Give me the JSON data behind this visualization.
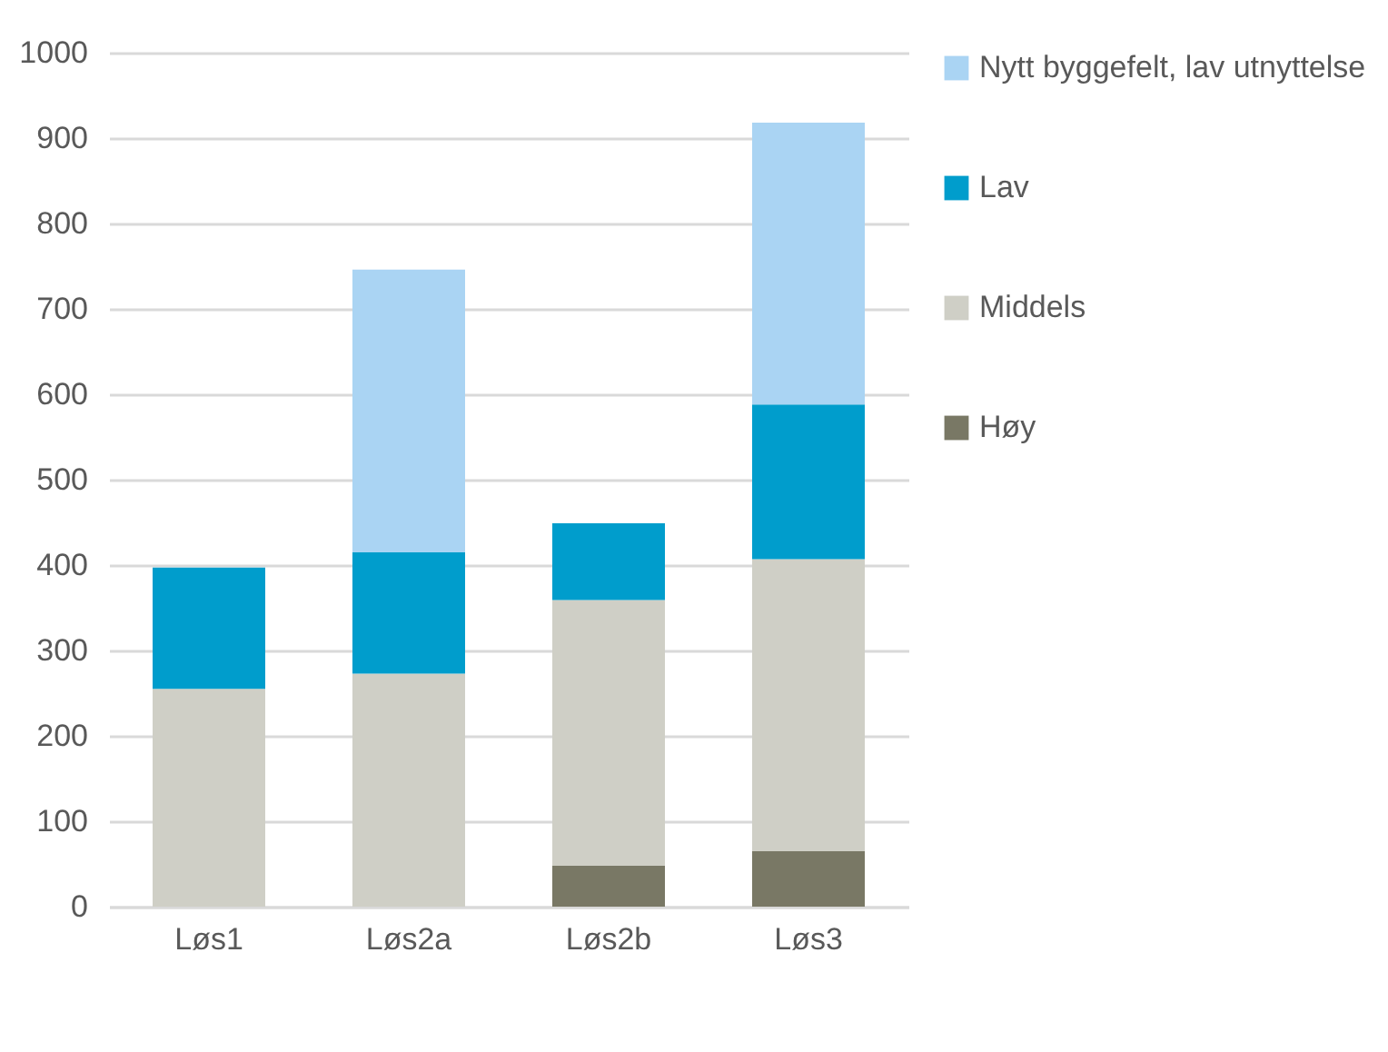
{
  "chart_data": {
    "type": "bar",
    "stacked": true,
    "categories": [
      "Løs1",
      "Løs2a",
      "Løs2b",
      "Løs3"
    ],
    "series": [
      {
        "name": "Høy",
        "color": "#797865",
        "values": [
          0,
          0,
          48,
          65
        ]
      },
      {
        "name": "Middels",
        "color": "#cfcfc6",
        "values": [
          255,
          273,
          311,
          342
        ]
      },
      {
        "name": "Lav",
        "color": "#009dcc",
        "values": [
          142,
          142,
          90,
          181
        ]
      },
      {
        "name": "Nytt byggefelt, lav utnyttelse",
        "color": "#aad4f3",
        "values": [
          0,
          331,
          0,
          330
        ]
      }
    ],
    "ylim": [
      0,
      1000
    ],
    "yticks": [
      0,
      100,
      200,
      300,
      400,
      500,
      600,
      700,
      800,
      900,
      1000
    ],
    "grid": "y",
    "legend": "right"
  }
}
